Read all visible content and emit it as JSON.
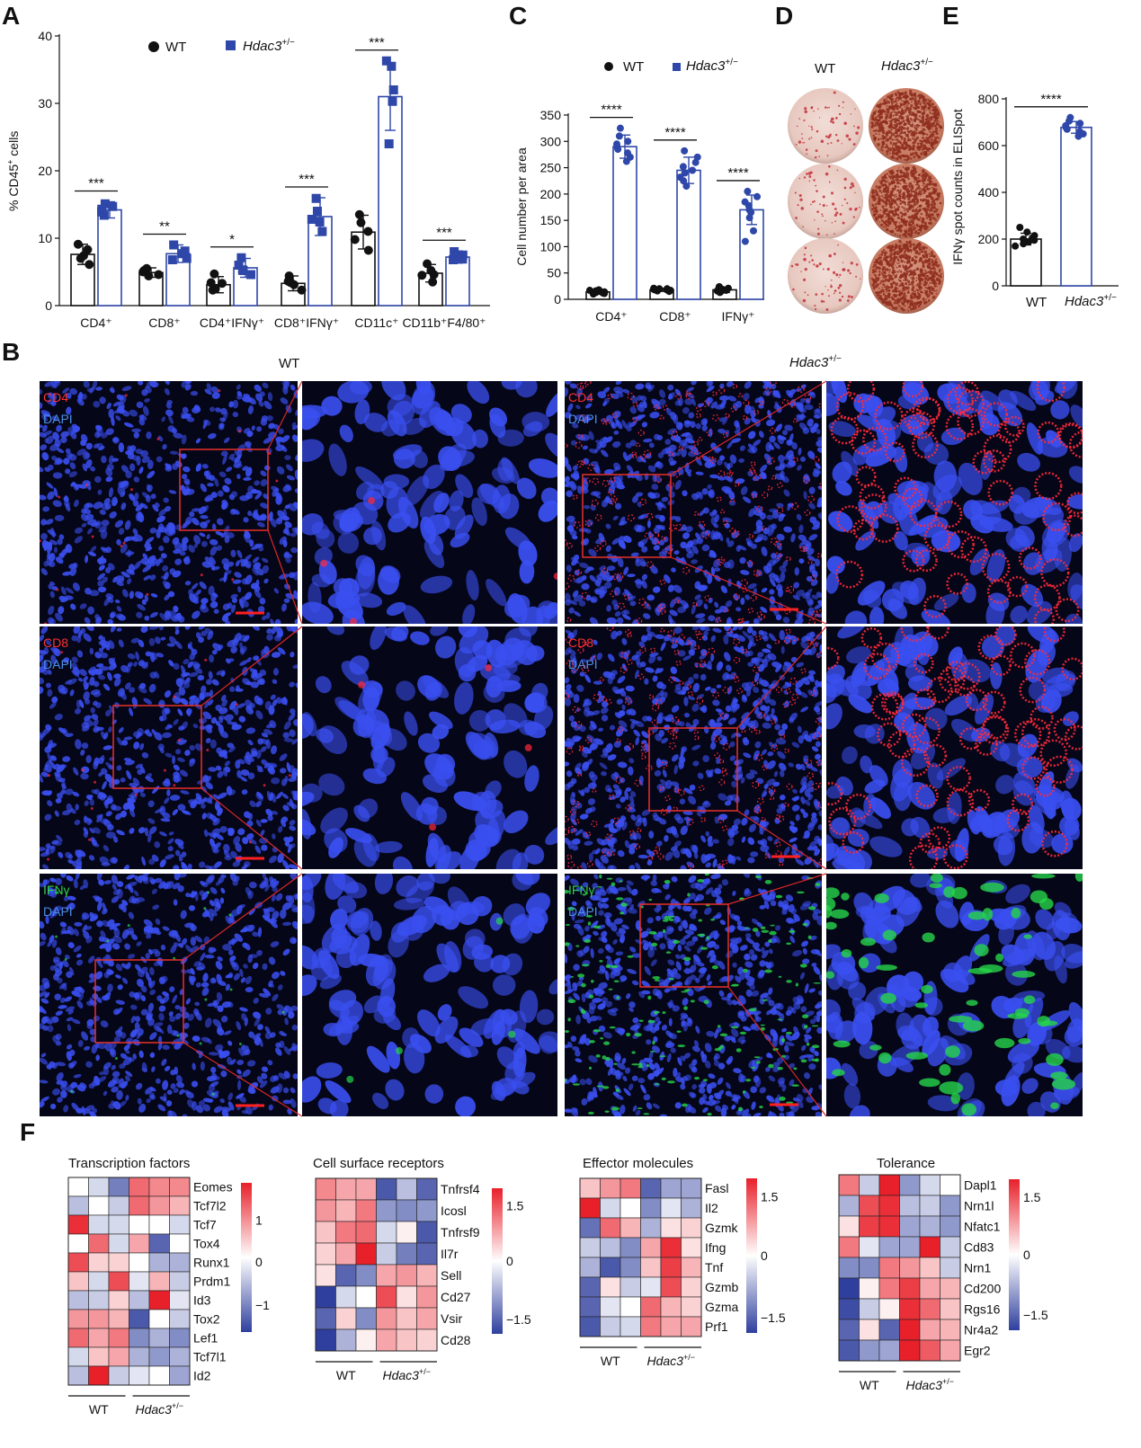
{
  "panels": {
    "A": "A",
    "B": "B",
    "C": "C",
    "D": "D",
    "E": "E",
    "F": "F"
  },
  "colors": {
    "wt": "#111111",
    "ko": "#2e47a8",
    "ko_light": "#6f86d6",
    "red": "#e8202a",
    "white": "#ffffff",
    "blue": "#2f3f9e",
    "cd_stain": "#ff2a3a",
    "ifng_stain": "#26d44a",
    "dapi": "#3a4ff0"
  },
  "panel_a": {
    "legend_wt": "WT",
    "legend_ko": "Hdac3",
    "legend_ko_sup": "+/−",
    "ylabel_main": "% CD45",
    "ylabel_sup": "+",
    "ylabel_tail": " cells",
    "chart_data": {
      "type": "bar",
      "categories": [
        "CD4⁺",
        "CD8⁺",
        "CD4⁺IFNγ⁺",
        "CD8⁺IFNγ⁺",
        "CD11c⁺",
        "CD11b⁺F4/80⁺"
      ],
      "ylim": [
        0,
        40
      ],
      "yticks": [
        0,
        10,
        20,
        30,
        40
      ],
      "series": [
        {
          "name": "WT",
          "values": [
            7.6,
            4.9,
            3.1,
            3.3,
            10.9,
            4.8
          ],
          "sd": [
            1.5,
            0.7,
            1.2,
            1.1,
            2.5,
            1.3
          ],
          "points": [
            [
              9.1,
              7.4,
              6.1,
              8.3,
              7.0
            ],
            [
              5.5,
              4.4,
              5.2,
              4.6,
              5.0
            ],
            [
              4.7,
              2.3,
              2.5,
              3.4,
              3.3
            ],
            [
              4.4,
              2.3,
              3.1,
              3.6,
              3.4
            ],
            [
              13.5,
              8.2,
              11.0,
              12.3,
              9.8
            ],
            [
              6.2,
              3.5,
              4.5,
              5.2,
              4.6
            ]
          ]
        },
        {
          "name": "Hdac3+/−",
          "values": [
            14.2,
            7.7,
            5.6,
            13.2,
            31.0,
            7.2
          ],
          "sd": [
            1.2,
            1.3,
            1.4,
            2.8,
            5.0,
            0.9
          ],
          "points": [
            [
              15.1,
              13.4,
              14.7,
              13.9,
              14.3
            ],
            [
              9.0,
              7.0,
              8.1,
              6.8,
              7.7
            ],
            [
              7.1,
              4.6,
              6.0,
              5.3,
              5.2
            ],
            [
              15.9,
              11.0,
              14.0,
              12.4,
              12.8
            ],
            [
              36.3,
              24.0,
              35.5,
              30.3,
              32.0
            ],
            [
              8.0,
              6.8,
              7.5,
              6.9,
              7.4
            ]
          ]
        }
      ],
      "significance": [
        "***",
        "**",
        "*",
        "***",
        "***",
        "***"
      ]
    }
  },
  "panel_c": {
    "legend_wt": "WT",
    "legend_ko": "Hdac3",
    "legend_ko_sup": "+/−",
    "ylabel": "Cell number per area",
    "chart_data": {
      "type": "bar",
      "categories": [
        "CD4⁺",
        "CD8⁺",
        "IFNγ⁺"
      ],
      "ylim": [
        0,
        350
      ],
      "yticks": [
        0,
        50,
        100,
        150,
        200,
        250,
        300,
        350
      ],
      "series": [
        {
          "name": "WT",
          "values": [
            14,
            18,
            18
          ],
          "sd": [
            4,
            3,
            5
          ],
          "points": [
            [
              10,
              18,
              14,
              12,
              16,
              11,
              15,
              13,
              17
            ],
            [
              16,
              20,
              18,
              15,
              21,
              19,
              17,
              18,
              20
            ],
            [
              14,
              22,
              18,
              16,
              21,
              13,
              19,
              24,
              17
            ]
          ]
        },
        {
          "name": "Hdac3+/−",
          "values": [
            290,
            245,
            170
          ],
          "sd": [
            22,
            25,
            28
          ],
          "points": [
            [
              325,
              310,
              300,
              295,
              290,
              285,
              278,
              270,
              262
            ],
            [
              282,
              270,
              260,
              252,
              245,
              240,
              232,
              225,
              215
            ],
            [
              205,
              195,
              185,
              178,
              170,
              165,
              155,
              130,
              110
            ]
          ]
        }
      ],
      "significance": [
        "****",
        "****",
        "****"
      ]
    }
  },
  "panel_d": {
    "col_wt": "WT",
    "col_ko": "Hdac3",
    "col_ko_sup": "+/−"
  },
  "panel_e": {
    "ylabel": "IFNγ spot counts in ELISpot",
    "xlabel_wt": "WT",
    "xlabel_ko": "Hdac3",
    "xlabel_ko_sup": "+/−",
    "chart_data": {
      "type": "bar",
      "categories": [
        "WT",
        "Hdac3+/−"
      ],
      "ylim": [
        0,
        800
      ],
      "yticks": [
        0,
        200,
        400,
        600,
        800
      ],
      "values": [
        200,
        678
      ],
      "sd": [
        25,
        25
      ],
      "points": [
        [
          250,
          230,
          215,
          205,
          200,
          195,
          190,
          180,
          170
        ],
        [
          720,
          705,
          695,
          685,
          678,
          670,
          660,
          650,
          640
        ]
      ],
      "significance": "****"
    }
  },
  "panel_b": {
    "col_wt": "WT",
    "col_ko": "Hdac3",
    "col_ko_sup": "+/−",
    "rows": [
      {
        "marker": "CD4",
        "dapi": "DAPI"
      },
      {
        "marker": "CD8",
        "dapi": "DAPI"
      },
      {
        "marker": "IFNγ",
        "dapi": "DAPI"
      }
    ]
  },
  "panel_f": {
    "group_wt": "WT",
    "group_ko": "Hdac3",
    "group_ko_sup": "+/−",
    "heatmaps": [
      {
        "title": "Transcription factors",
        "genes": [
          "Eomes",
          "Tcf7l2",
          "Tcf7",
          "Tox4",
          "Runx1",
          "Prdm1",
          "Id3",
          "Tox2",
          "Lef1",
          "Tcf7l1",
          "Id2"
        ],
        "scale": [
          "1",
          "0",
          "−1"
        ],
        "values": [
          [
            0,
            -0.3,
            -1,
            1,
            0.8,
            0.8
          ],
          [
            -0.5,
            0,
            -0.4,
            1,
            0.7,
            0.5
          ],
          [
            1.4,
            -0.3,
            -0.3,
            0,
            0,
            -0.3
          ],
          [
            0,
            1,
            -0.3,
            0.6,
            -1.2,
            0
          ],
          [
            1.2,
            0.3,
            0.3,
            0,
            -0.6,
            -0.6
          ],
          [
            0.4,
            -0.3,
            1.2,
            -0.2,
            0.5,
            -0.4
          ],
          [
            -0.5,
            -0.4,
            0.3,
            -0.5,
            1.6,
            -0.2
          ],
          [
            0.7,
            0.7,
            0.5,
            -1.3,
            0,
            -0.4
          ],
          [
            1,
            0.6,
            0.9,
            -0.9,
            -0.6,
            -0.9
          ],
          [
            -0.3,
            0.4,
            0.6,
            -0.6,
            -0.8,
            -0.6
          ],
          [
            -0.5,
            1.5,
            -0.4,
            -0.2,
            0,
            -0.7
          ]
        ]
      },
      {
        "title": "Cell surface receptors",
        "genes": [
          "Tnfrsf4",
          "Icosl",
          "Tnfrsf9",
          "Il7r",
          "Sell",
          "Cd27",
          "Vsir",
          "Cd28"
        ],
        "scale": [
          "1.5",
          "0",
          "−1.5"
        ],
        "values": [
          [
            0.8,
            0.6,
            0.6,
            -1.3,
            -0.5,
            -1.2
          ],
          [
            0.7,
            0.5,
            0.9,
            -0.8,
            -0.9,
            -0.8
          ],
          [
            0.4,
            0.9,
            1.0,
            -0.3,
            0.1,
            -1.3
          ],
          [
            0.3,
            0.6,
            1.5,
            -0.4,
            -1.0,
            -1.2
          ],
          [
            0.2,
            -1.2,
            -0.9,
            0.6,
            0.7,
            0.5
          ],
          [
            -1.5,
            -0.3,
            0,
            1.2,
            0.2,
            0.7
          ],
          [
            -1.2,
            0.3,
            -0.9,
            0.7,
            0.4,
            0.6
          ],
          [
            -1.5,
            -0.6,
            0.1,
            0.6,
            0.4,
            0.3
          ]
        ]
      },
      {
        "title": "Effector molecules",
        "genes": [
          "Fasl",
          "Il2",
          "Gzmk",
          "Ifng",
          "Tnf",
          "Gzmb",
          "Gzma",
          "Prf1"
        ],
        "scale": [
          "1.5",
          "0",
          "−1.5"
        ],
        "values": [
          [
            0.4,
            0.7,
            0.9,
            -1.2,
            -0.7,
            -0.7
          ],
          [
            1.5,
            -0.3,
            0,
            -0.9,
            -0.2,
            -0.6
          ],
          [
            -1.1,
            1.0,
            0.5,
            -0.6,
            0.2,
            0.3
          ],
          [
            -0.4,
            -0.5,
            -0.9,
            0.6,
            1.4,
            0.2
          ],
          [
            -0.6,
            -1.3,
            -0.9,
            0.4,
            1.3,
            0.5
          ],
          [
            -1.2,
            0.2,
            -0.4,
            -0.2,
            1.2,
            0.3
          ],
          [
            -1.2,
            -0.2,
            0,
            1.0,
            0.5,
            0.3
          ],
          [
            -1.3,
            -0.4,
            -0.3,
            0.9,
            0.6,
            0.6
          ]
        ]
      },
      {
        "title": "Tolerance",
        "genes": [
          "Dapl1",
          "Nrn1l",
          "Nfatc1",
          "Cd83",
          "Nrn1",
          "Cd200",
          "Rgs16",
          "Nr4a2",
          "Egr2"
        ],
        "scale": [
          "1.5",
          "0",
          "−1.5"
        ],
        "values": [
          [
            0.9,
            -0.4,
            1.5,
            -0.8,
            -0.3,
            0
          ],
          [
            -0.6,
            1.2,
            1.4,
            -0.5,
            -0.4,
            -0.8
          ],
          [
            0.2,
            1.3,
            1.4,
            -0.7,
            -0.6,
            -0.8
          ],
          [
            0.9,
            -0.2,
            -0.7,
            -0.7,
            1.5,
            -0.4
          ],
          [
            -0.9,
            -0.9,
            0.9,
            0.7,
            0.4,
            -0.4
          ],
          [
            -1.5,
            0.1,
            0.9,
            1.3,
            0.6,
            0.5
          ],
          [
            -1.4,
            -0.4,
            0.1,
            1.4,
            1.0,
            0.4
          ],
          [
            -1.2,
            0.2,
            -1.2,
            1.5,
            0.6,
            0.5
          ],
          [
            -1.3,
            -0.8,
            -0.7,
            1.5,
            1.1,
            0.6
          ]
        ]
      }
    ]
  }
}
